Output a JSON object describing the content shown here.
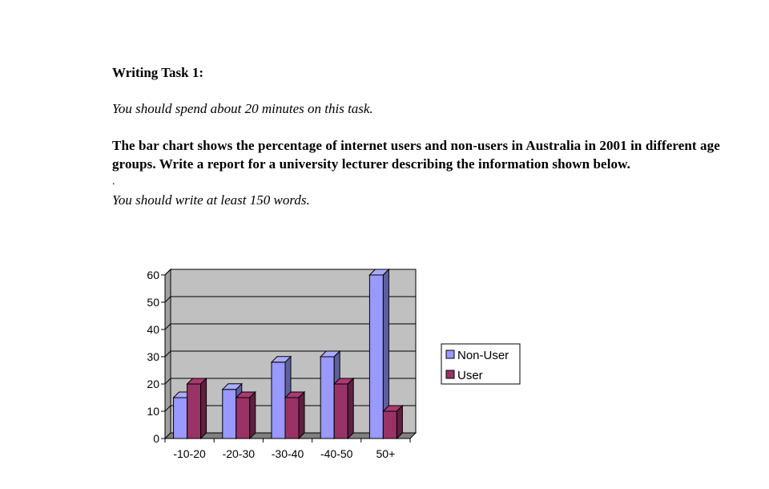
{
  "document": {
    "heading": "Writing Task 1:",
    "instruction_time": "You should spend about 20 minutes on this task.",
    "prompt": "The bar chart shows the percentage of internet users and non-users in Australia in 2001 in different age groups. Write a report for a university lecturer describing the information shown below.",
    "separator": ".",
    "instruction_words": "You should write at least 150 words."
  },
  "chart_data": {
    "type": "bar",
    "categories": [
      "-10-20",
      "-20-30",
      "-30-40",
      "-40-50",
      "50+"
    ],
    "series": [
      {
        "name": "Non-User",
        "values": [
          15,
          18,
          28,
          30,
          60
        ],
        "color": "#9999ff"
      },
      {
        "name": "User",
        "values": [
          20,
          15,
          15,
          20,
          10
        ],
        "color": "#993366"
      }
    ],
    "ylim": [
      0,
      60
    ],
    "yticks": [
      0,
      10,
      20,
      30,
      40,
      50,
      60
    ],
    "grid": true,
    "plot_background": "#c0c0c0",
    "legend_position": "right",
    "title": "",
    "xlabel": "",
    "ylabel": ""
  }
}
